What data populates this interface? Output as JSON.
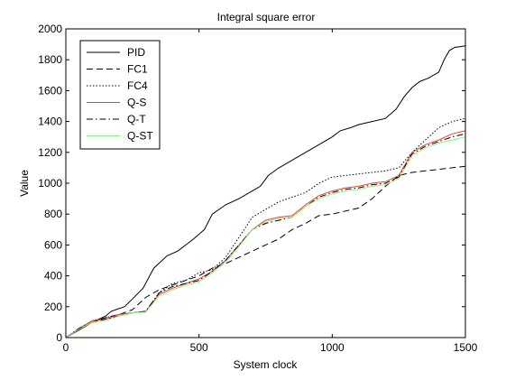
{
  "chart_data": {
    "type": "line",
    "title": "Integral square error",
    "xlabel": "System clock",
    "ylabel": "Value",
    "xlim": [
      0,
      1500
    ],
    "ylim": [
      0,
      2000
    ],
    "xticks": [
      0,
      500,
      1000,
      1500
    ],
    "yticks": [
      0,
      200,
      400,
      600,
      800,
      1000,
      1200,
      1400,
      1600,
      1800,
      2000
    ],
    "grid": false,
    "legend_position": "top-left",
    "series": [
      {
        "name": "PID",
        "color": "#000000",
        "dash": "solid",
        "x": [
          0,
          50,
          100,
          150,
          170,
          220,
          250,
          290,
          330,
          380,
          420,
          450,
          480,
          520,
          550,
          600,
          650,
          700,
          730,
          760,
          800,
          850,
          900,
          950,
          1000,
          1030,
          1070,
          1100,
          1150,
          1200,
          1240,
          1270,
          1300,
          1330,
          1360,
          1400,
          1420,
          1440,
          1460,
          1500
        ],
        "y": [
          0,
          50,
          100,
          140,
          170,
          200,
          250,
          320,
          450,
          530,
          560,
          600,
          640,
          700,
          800,
          860,
          900,
          950,
          980,
          1050,
          1100,
          1150,
          1200,
          1250,
          1300,
          1340,
          1360,
          1380,
          1400,
          1420,
          1480,
          1560,
          1620,
          1660,
          1680,
          1720,
          1800,
          1860,
          1880,
          1890
        ]
      },
      {
        "name": "FC1",
        "color": "#000000",
        "dash": "dashed",
        "x": [
          0,
          50,
          100,
          150,
          200,
          250,
          300,
          350,
          400,
          450,
          500,
          550,
          600,
          650,
          700,
          750,
          800,
          850,
          900,
          950,
          1000,
          1050,
          1100,
          1150,
          1200,
          1250,
          1300,
          1350,
          1400,
          1450,
          1500
        ],
        "y": [
          0,
          50,
          100,
          130,
          150,
          180,
          260,
          310,
          340,
          370,
          400,
          450,
          480,
          520,
          560,
          600,
          640,
          700,
          740,
          790,
          800,
          820,
          840,
          900,
          980,
          1050,
          1070,
          1080,
          1090,
          1100,
          1110
        ]
      },
      {
        "name": "FC4",
        "color": "#000000",
        "dash": "dotted",
        "x": [
          0,
          50,
          100,
          150,
          200,
          250,
          300,
          350,
          400,
          450,
          500,
          550,
          600,
          650,
          700,
          750,
          800,
          850,
          900,
          950,
          1000,
          1050,
          1100,
          1150,
          1200,
          1250,
          1300,
          1350,
          1400,
          1450,
          1500
        ],
        "y": [
          0,
          60,
          110,
          130,
          150,
          160,
          170,
          290,
          350,
          370,
          420,
          440,
          520,
          650,
          780,
          830,
          880,
          910,
          940,
          1000,
          1040,
          1050,
          1060,
          1070,
          1080,
          1100,
          1200,
          1280,
          1360,
          1400,
          1420
        ]
      },
      {
        "name": "Q-S",
        "color": "#e8412b",
        "dash": "solid",
        "x": [
          0,
          50,
          100,
          150,
          200,
          250,
          300,
          350,
          400,
          450,
          500,
          550,
          600,
          650,
          700,
          750,
          800,
          850,
          900,
          950,
          1000,
          1050,
          1100,
          1150,
          1200,
          1250,
          1300,
          1350,
          1400,
          1450,
          1500
        ],
        "y": [
          0,
          60,
          110,
          120,
          150,
          160,
          170,
          280,
          320,
          350,
          380,
          430,
          500,
          600,
          700,
          760,
          780,
          790,
          860,
          920,
          950,
          970,
          980,
          1000,
          1010,
          1050,
          1200,
          1250,
          1280,
          1320,
          1340
        ]
      },
      {
        "name": "Q-T",
        "color": "#000000",
        "dash": "dashdot",
        "x": [
          0,
          50,
          100,
          150,
          200,
          250,
          300,
          350,
          400,
          450,
          500,
          550,
          600,
          650,
          700,
          750,
          800,
          850,
          900,
          950,
          1000,
          1050,
          1100,
          1150,
          1200,
          1250,
          1300,
          1350,
          1400,
          1450,
          1500
        ],
        "y": [
          0,
          60,
          100,
          120,
          140,
          160,
          170,
          290,
          330,
          350,
          370,
          430,
          500,
          600,
          700,
          740,
          760,
          780,
          850,
          910,
          940,
          960,
          970,
          990,
          1000,
          1040,
          1190,
          1240,
          1270,
          1300,
          1320
        ]
      },
      {
        "name": "Q-ST",
        "color": "#90ee90",
        "dash": "solid",
        "x": [
          0,
          50,
          100,
          150,
          200,
          250,
          300,
          350,
          400,
          450,
          500,
          550,
          600,
          650,
          700,
          750,
          800,
          850,
          900,
          950,
          1000,
          1050,
          1100,
          1150,
          1200,
          1250,
          1300,
          1350,
          1400,
          1450,
          1500
        ],
        "y": [
          0,
          55,
          100,
          110,
          140,
          160,
          165,
          270,
          310,
          340,
          360,
          420,
          490,
          590,
          700,
          750,
          770,
          780,
          850,
          900,
          930,
          950,
          960,
          980,
          990,
          1030,
          1180,
          1230,
          1260,
          1280,
          1300
        ]
      }
    ]
  }
}
